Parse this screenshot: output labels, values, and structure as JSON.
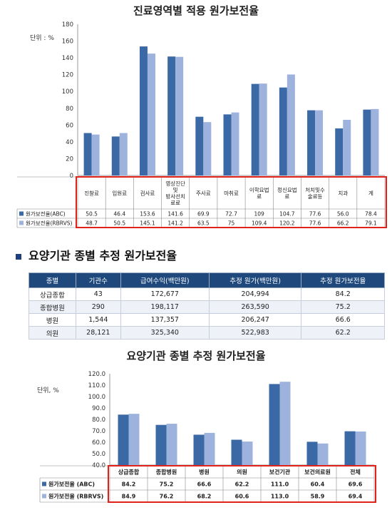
{
  "chart_data": [
    {
      "type": "bar",
      "title": "진료영역별 적용 원가보전율",
      "unit_label": "단위 : %",
      "categories": [
        "진찰료",
        "입원료",
        "검사료",
        "영상진단 및 방사선치료료",
        "주사료",
        "마취료",
        "이학요법료",
        "정신요법료",
        "처치및수술료등",
        "치과",
        "계"
      ],
      "category_lines": [
        [
          "진찰료"
        ],
        [
          "입원료"
        ],
        [
          "검사료"
        ],
        [
          "영상진단",
          "및",
          "방사선치",
          "료료"
        ],
        [
          "주사료"
        ],
        [
          "마취료"
        ],
        [
          "이학요법",
          "료"
        ],
        [
          "정신요법",
          "료"
        ],
        [
          "처치및수",
          "술료등"
        ],
        [
          "치과"
        ],
        [
          "계"
        ]
      ],
      "series": [
        {
          "name": "원가보전율(ABC)",
          "values": [
            50.5,
            46.4,
            153.6,
            141.6,
            69.9,
            72.7,
            109,
            104.7,
            77.6,
            56.0,
            78.4
          ]
        },
        {
          "name": "원가보전율(RBRVS)",
          "values": [
            48.7,
            50.5,
            145.1,
            141.2,
            63.5,
            75,
            109.4,
            120.2,
            77.6,
            66.2,
            79.1
          ]
        }
      ],
      "series_display": [
        [
          "50.5",
          "46.4",
          "153.6",
          "141.6",
          "69.9",
          "72.7",
          "109",
          "104.7",
          "77.6",
          "56.0",
          "78.4"
        ],
        [
          "48.7",
          "50.5",
          "145.1",
          "141.2",
          "63.5",
          "75",
          "109.4",
          "120.2",
          "77.6",
          "66.2",
          "79.1"
        ]
      ],
      "ylim": [
        0,
        180
      ],
      "yticks": [
        "0",
        "20",
        "40",
        "60",
        "80",
        "100",
        "120",
        "140",
        "160",
        "180"
      ],
      "colors": [
        "#3b69a6",
        "#9db2dc"
      ],
      "highlight_color": "#e0221b"
    },
    {
      "type": "bar",
      "title": "요양기관 종별 추정 원가보전율",
      "unit_label": "단위, %",
      "categories": [
        "상급종합",
        "종합병원",
        "병원",
        "의원",
        "보건기관",
        "보건의료원",
        "전체"
      ],
      "category_lines": [
        [
          "상급종합"
        ],
        [
          "종합병원"
        ],
        [
          "병원"
        ],
        [
          "의원"
        ],
        [
          "보건기관"
        ],
        [
          "보건의료원"
        ],
        [
          "전체"
        ]
      ],
      "series": [
        {
          "name": "원가보전율 (ABC)",
          "values": [
            84.2,
            75.2,
            66.6,
            62.2,
            111.0,
            60.4,
            69.6
          ]
        },
        {
          "name": "원가보전율 (RBRVS)",
          "values": [
            84.9,
            76.2,
            68.2,
            60.6,
            113.0,
            58.9,
            69.4
          ]
        }
      ],
      "series_display": [
        [
          "84.2",
          "75.2",
          "66.6",
          "62.2",
          "111.0",
          "60.4",
          "69.6"
        ],
        [
          "84.9",
          "76.2",
          "68.2",
          "60.6",
          "113.0",
          "58.9",
          "69.4"
        ]
      ],
      "ylim": [
        40,
        120
      ],
      "yticks": [
        "40.0",
        "50.0",
        "60.0",
        "70.0",
        "80.0",
        "90.0",
        "100.0",
        "110.0",
        "120.0"
      ],
      "colors": [
        "#3b69a6",
        "#9db2dc"
      ],
      "highlight_color": "#e0221b"
    }
  ],
  "section": {
    "heading": "요양기관 종별 추정 원가보전율",
    "table": {
      "headers": [
        "종별",
        "기관수",
        "급여수익(백만원)",
        "추정 원가(백만원)",
        "추정 원가보전율"
      ],
      "rows": [
        [
          "상급종합",
          "43",
          "172,677",
          "204,994",
          "84.2"
        ],
        [
          "종합병원",
          "290",
          "198,117",
          "263,590",
          "75.2"
        ],
        [
          "병원",
          "1,544",
          "137,357",
          "206,247",
          "66.6"
        ],
        [
          "의원",
          "28,121",
          "325,340",
          "522,983",
          "62.2"
        ]
      ]
    }
  }
}
